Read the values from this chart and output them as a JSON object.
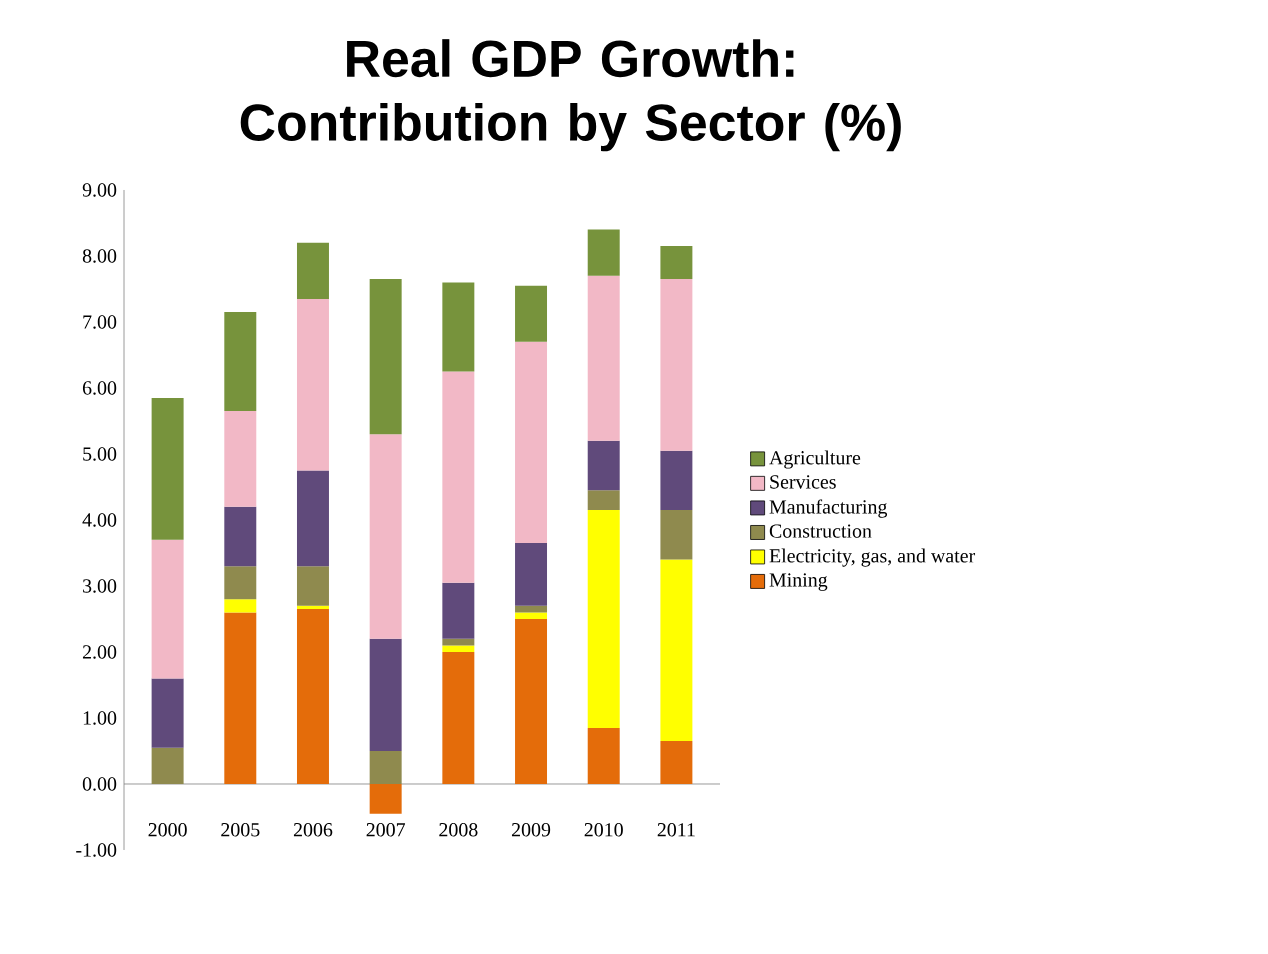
{
  "chart_data": {
    "type": "bar",
    "stacked": true,
    "title": "Real GDP Growth: Contribution by Sector (%)",
    "categories": [
      "2000",
      "2005",
      "2006",
      "2007",
      "2008",
      "2009",
      "2010",
      "2011"
    ],
    "series": [
      {
        "name": "Mining",
        "color": "#e46c0a",
        "values": [
          0,
          2.6,
          2.65,
          -0.45,
          2.0,
          2.5,
          0.85,
          0.65
        ]
      },
      {
        "name": "Electricity, gas, and water",
        "color": "#ffff00",
        "values": [
          0,
          0.2,
          0.05,
          0,
          0.1,
          0.1,
          3.3,
          2.75
        ]
      },
      {
        "name": "Construction",
        "color": "#8f8a4e",
        "values": [
          0.55,
          0.5,
          0.6,
          0.5,
          0.1,
          0.1,
          0.3,
          0.75
        ]
      },
      {
        "name": "Manufacturing",
        "color": "#604a7b",
        "values": [
          1.05,
          0.9,
          1.45,
          1.7,
          0.85,
          0.95,
          0.75,
          0.9
        ]
      },
      {
        "name": "Services",
        "color": "#f2b8c6",
        "values": [
          2.1,
          1.45,
          2.6,
          3.1,
          3.2,
          3.05,
          2.5,
          2.6
        ]
      },
      {
        "name": "Agriculture",
        "color": "#77933c",
        "values": [
          2.15,
          1.5,
          0.85,
          2.35,
          1.35,
          0.85,
          0.7,
          0.5
        ]
      }
    ],
    "ylim": [
      -1,
      9
    ],
    "yticks": [
      {
        "value": -1,
        "label": "-1.00"
      },
      {
        "value": 0,
        "label": "0.00"
      },
      {
        "value": 1,
        "label": "1.00"
      },
      {
        "value": 2,
        "label": "2.00"
      },
      {
        "value": 3,
        "label": "3.00"
      },
      {
        "value": 4,
        "label": "4.00"
      },
      {
        "value": 5,
        "label": "5.00"
      },
      {
        "value": 6,
        "label": "6.00"
      },
      {
        "value": 7,
        "label": "7.00"
      },
      {
        "value": 8,
        "label": "8.00"
      },
      {
        "value": 9,
        "label": "9.00"
      }
    ],
    "legend": "right",
    "grid": false
  }
}
